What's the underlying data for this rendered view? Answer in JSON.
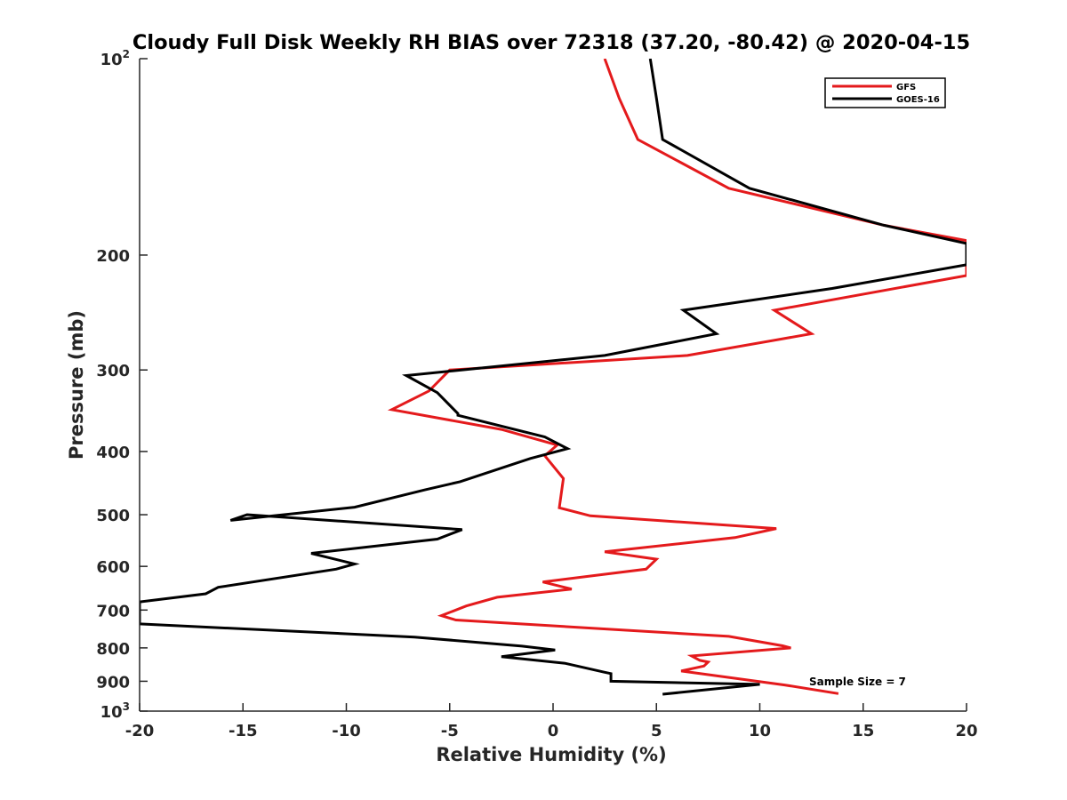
{
  "chart_data": {
    "type": "line",
    "title": "Cloudy Full Disk Weekly RH BIAS over 72318 (37.20, -80.42) @ 2020-04-15",
    "xlabel": "Relative Humidity (%)",
    "ylabel": "Pressure (mb)",
    "xlim": [
      -20,
      20
    ],
    "ylim": [
      100,
      1000
    ],
    "yscale": "log",
    "y_reversed": true,
    "xticks": [
      -20,
      -15,
      -10,
      -5,
      0,
      5,
      10,
      15,
      20
    ],
    "xtick_labels": [
      "-20",
      "-15",
      "-10",
      "-5",
      "0",
      "5",
      "10",
      "15",
      "20"
    ],
    "yticks": [
      {
        "value": 100,
        "base": "10",
        "exp": "2"
      },
      {
        "value": 200,
        "base": "200",
        "exp": ""
      },
      {
        "value": 300,
        "base": "300",
        "exp": ""
      },
      {
        "value": 400,
        "base": "400",
        "exp": ""
      },
      {
        "value": 500,
        "base": "500",
        "exp": ""
      },
      {
        "value": 600,
        "base": "600",
        "exp": ""
      },
      {
        "value": 700,
        "base": "700",
        "exp": ""
      },
      {
        "value": 800,
        "base": "800",
        "exp": ""
      },
      {
        "value": 900,
        "base": "900",
        "exp": ""
      },
      {
        "value": 1000,
        "base": "10",
        "exp": "3"
      }
    ],
    "legend": {
      "location": "top-right",
      "entries": [
        "GFS",
        "GOES-16"
      ]
    },
    "annotation": "Sample Size = 7",
    "series": [
      {
        "name": "GFS",
        "color": "#e41a1c",
        "points": [
          [
            2.5,
            100
          ],
          [
            3.2,
            115
          ],
          [
            4.1,
            133
          ],
          [
            8.5,
            158
          ],
          [
            16.0,
            180
          ],
          [
            20.0,
            190
          ],
          [
            20.0,
            209
          ],
          [
            20.0,
            215
          ],
          [
            10.7,
            243
          ],
          [
            12.5,
            264
          ],
          [
            6.5,
            285
          ],
          [
            -5.0,
            300
          ],
          [
            -6.0,
            323
          ],
          [
            -7.8,
            345
          ],
          [
            -2.5,
            370
          ],
          [
            0.2,
            391
          ],
          [
            -0.4,
            406
          ],
          [
            0.5,
            440
          ],
          [
            0.3,
            488
          ],
          [
            1.8,
            502
          ],
          [
            10.8,
            525
          ],
          [
            8.8,
            542
          ],
          [
            2.5,
            570
          ],
          [
            5.0,
            585
          ],
          [
            4.5,
            606
          ],
          [
            -0.5,
            634
          ],
          [
            0.9,
            650
          ],
          [
            -2.7,
            669
          ],
          [
            -4.2,
            690
          ],
          [
            -5.4,
            714
          ],
          [
            -4.7,
            725
          ],
          [
            8.5,
            768
          ],
          [
            11.1,
            794
          ],
          [
            11.5,
            800
          ],
          [
            6.7,
            823
          ],
          [
            7.1,
            836
          ],
          [
            7.5,
            841
          ],
          [
            7.3,
            853
          ],
          [
            6.2,
            868
          ],
          [
            11.2,
            912
          ],
          [
            13.8,
            940
          ]
        ]
      },
      {
        "name": "GOES-16",
        "color": "#000000",
        "points": [
          [
            4.7,
            100
          ],
          [
            5.0,
            115
          ],
          [
            5.3,
            133
          ],
          [
            9.5,
            158
          ],
          [
            16.0,
            180
          ],
          [
            20.0,
            192
          ],
          [
            20.0,
            207
          ],
          [
            13.5,
            225
          ],
          [
            6.3,
            243
          ],
          [
            7.9,
            264
          ],
          [
            2.5,
            285
          ],
          [
            -7.1,
            306
          ],
          [
            -5.6,
            325
          ],
          [
            -4.6,
            350
          ],
          [
            -4.6,
            352
          ],
          [
            -0.4,
            380
          ],
          [
            0.7,
            396
          ],
          [
            -1.1,
            410
          ],
          [
            -4.5,
            445
          ],
          [
            -6.2,
            458
          ],
          [
            -9.6,
            487
          ],
          [
            -15.6,
            510
          ],
          [
            -14.8,
            500
          ],
          [
            -4.4,
            527
          ],
          [
            -5.6,
            545
          ],
          [
            -11.7,
            573
          ],
          [
            -9.6,
            595
          ],
          [
            -10.5,
            606
          ],
          [
            -16.2,
            646
          ],
          [
            -16.8,
            661
          ],
          [
            -20.0,
            680
          ],
          [
            -20.0,
            735
          ],
          [
            -6.7,
            770
          ],
          [
            -1.5,
            795
          ],
          [
            0.1,
            806
          ],
          [
            -2.5,
            825
          ],
          [
            0.6,
            845
          ],
          [
            2.5,
            872
          ],
          [
            2.8,
            876
          ],
          [
            2.8,
            900
          ],
          [
            10.0,
            910
          ],
          [
            5.3,
            942
          ]
        ]
      }
    ]
  }
}
